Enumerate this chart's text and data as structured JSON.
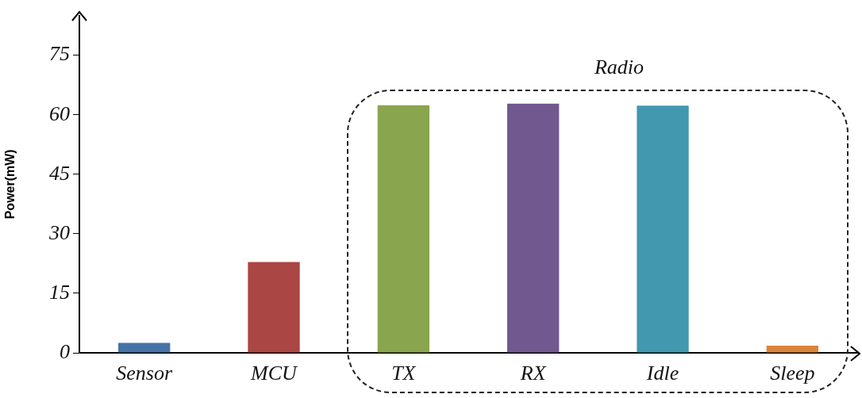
{
  "chart_data": {
    "type": "bar",
    "ylabel": "Power(mW)",
    "categories": [
      "Sensor",
      "MCU",
      "TX",
      "RX",
      "Idle",
      "Sleep"
    ],
    "values": [
      2.5,
      22.9,
      62.4,
      62.8,
      62.3,
      1.8
    ],
    "colors": [
      "#4572a7",
      "#aa4643",
      "#89a54e",
      "#71588f",
      "#4198af",
      "#db843d"
    ],
    "ylim": [
      0,
      85
    ],
    "yticks": [
      0,
      15,
      30,
      45,
      60,
      75
    ],
    "annotations": [
      "Radio"
    ]
  }
}
